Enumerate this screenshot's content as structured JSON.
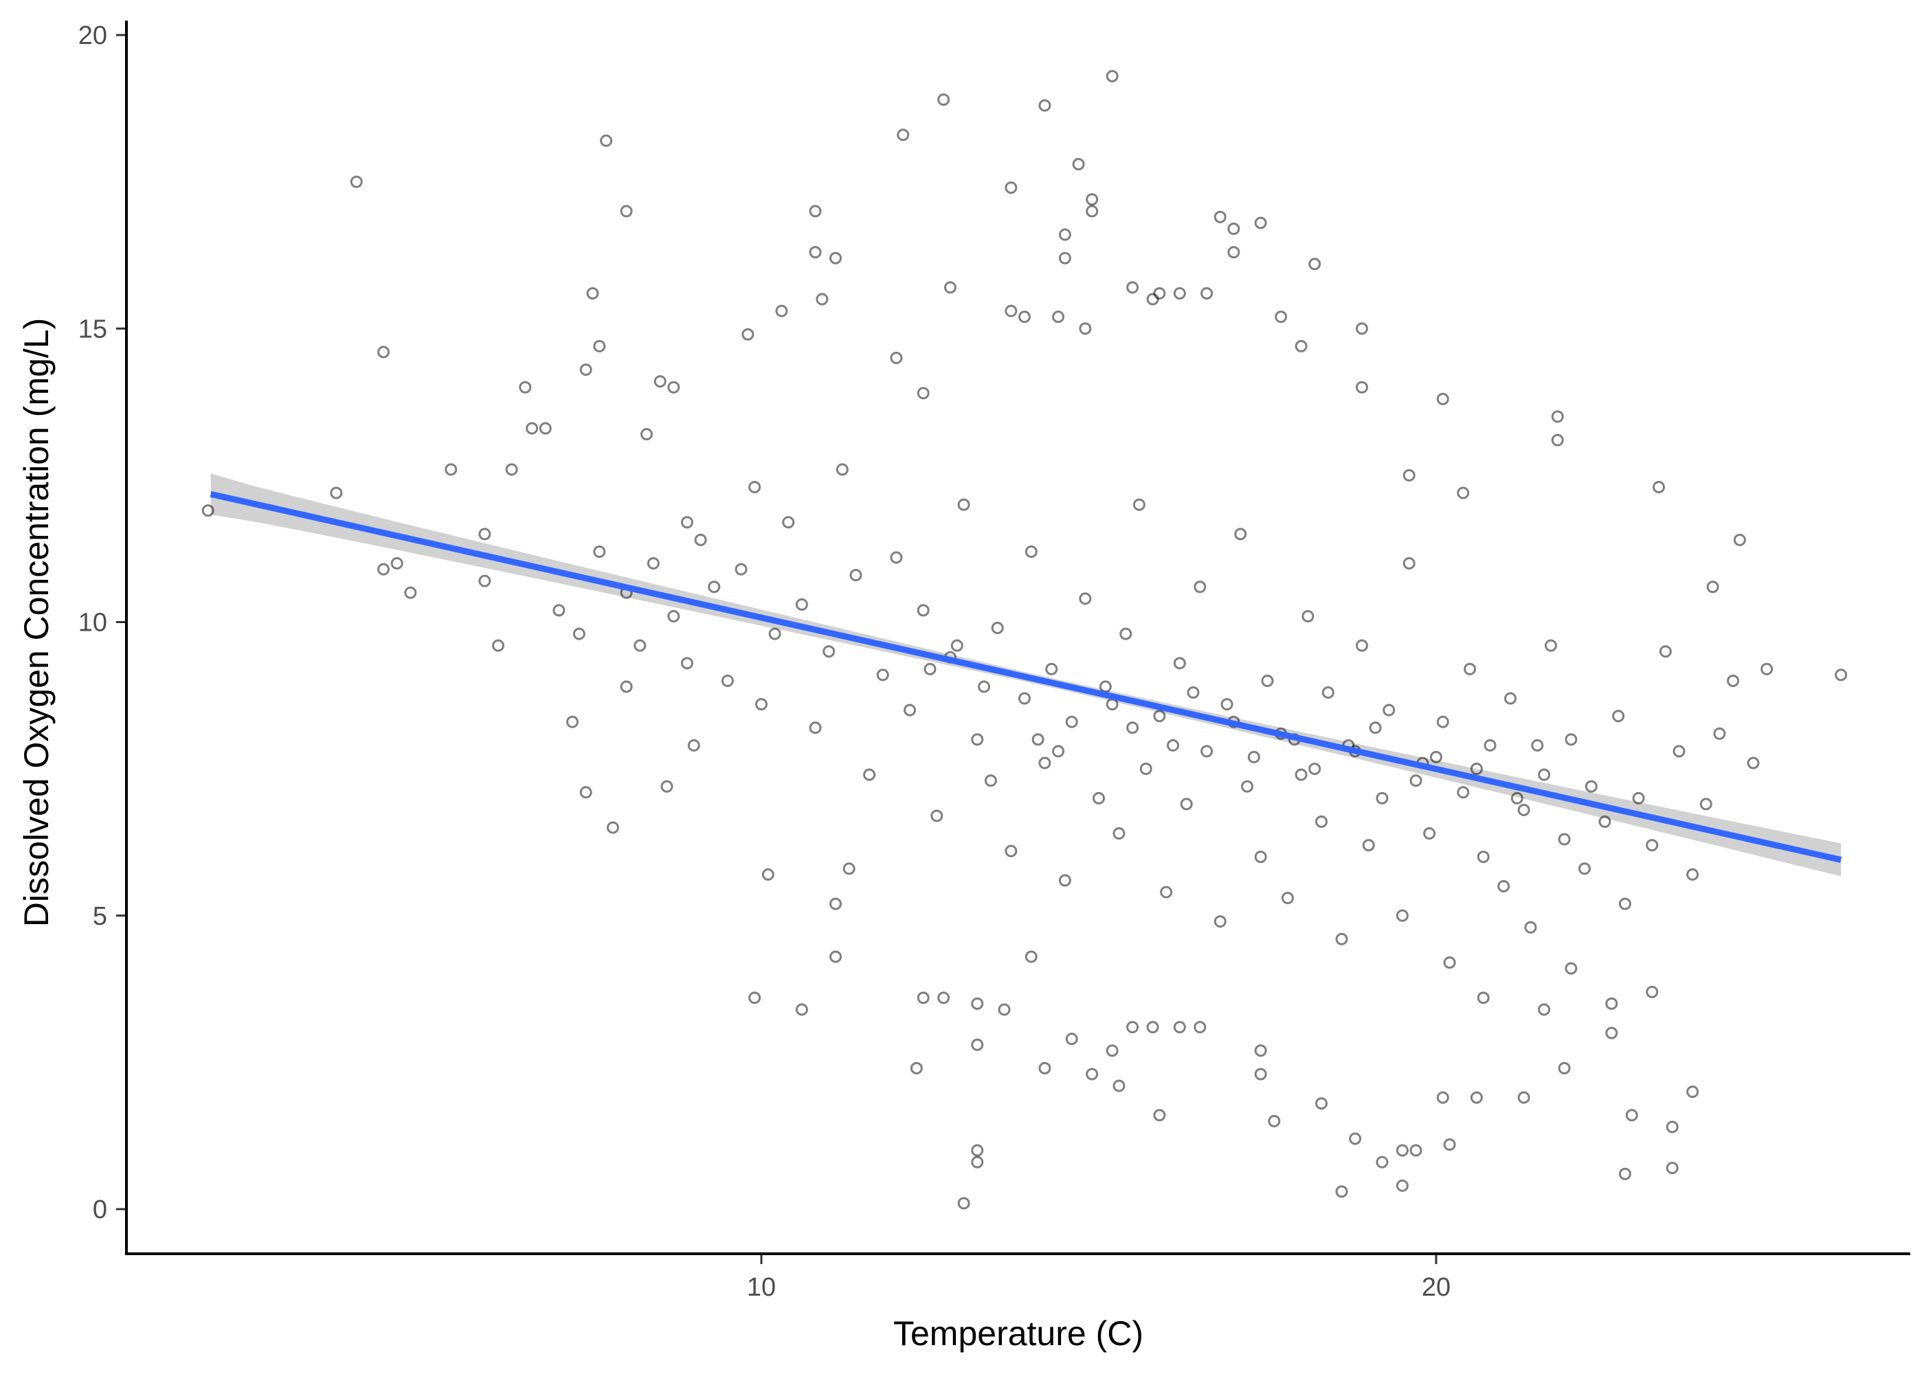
{
  "chart_data": {
    "type": "scatter",
    "title": "",
    "xlabel": "Temperature (C)",
    "ylabel": "Dissolved Oxygen Concentration (mg/L)",
    "xlim": [
      0.9,
      27.4
    ],
    "ylim": [
      -0.8,
      20.2
    ],
    "xticks": [
      10,
      20
    ],
    "xtick_labels": [
      "10",
      "20"
    ],
    "yticks": [
      0,
      5,
      10,
      15,
      20
    ],
    "ytick_labels": [
      "0",
      "5",
      "10",
      "15",
      "20"
    ],
    "grid": false,
    "legend": "none",
    "point_color": "#000000",
    "point_opacity": 0.5,
    "fit": {
      "method": "linear",
      "color": "#3366FF",
      "band_color": "#999999",
      "x": [
        1.84,
        26.0
      ],
      "y": [
        12.18,
        5.95
      ],
      "ci_halfwidth": [
        0.35,
        0.08,
        0.28
      ]
    },
    "points": [
      [
        1.8,
        11.9
      ],
      [
        4.0,
        17.5
      ],
      [
        3.7,
        12.2
      ],
      [
        4.4,
        14.6
      ],
      [
        4.4,
        10.9
      ],
      [
        4.6,
        11.0
      ],
      [
        4.8,
        10.5
      ],
      [
        5.4,
        12.6
      ],
      [
        5.9,
        11.5
      ],
      [
        5.9,
        10.7
      ],
      [
        6.1,
        9.6
      ],
      [
        6.3,
        12.6
      ],
      [
        6.6,
        13.3
      ],
      [
        6.8,
        13.3
      ],
      [
        6.5,
        14.0
      ],
      [
        7.7,
        18.2
      ],
      [
        8.0,
        17.0
      ],
      [
        7.5,
        15.6
      ],
      [
        7.6,
        14.7
      ],
      [
        7.4,
        14.3
      ],
      [
        7.8,
        6.5
      ],
      [
        7.4,
        7.1
      ],
      [
        7.2,
        8.3
      ],
      [
        8.6,
        7.2
      ],
      [
        8.0,
        8.9
      ],
      [
        8.5,
        14.1
      ],
      [
        8.7,
        14.0
      ],
      [
        8.3,
        13.2
      ],
      [
        8.9,
        11.7
      ],
      [
        9.0,
        7.9
      ],
      [
        9.8,
        14.9
      ],
      [
        9.9,
        3.6
      ],
      [
        10.1,
        5.7
      ],
      [
        10.3,
        15.3
      ],
      [
        10.6,
        3.4
      ],
      [
        10.8,
        17.0
      ],
      [
        10.8,
        16.3
      ],
      [
        11.1,
        16.2
      ],
      [
        10.9,
        15.5
      ],
      [
        11.1,
        4.3
      ],
      [
        11.1,
        5.2
      ],
      [
        11.3,
        5.8
      ],
      [
        12.1,
        18.3
      ],
      [
        12.7,
        18.9
      ],
      [
        12.8,
        15.7
      ],
      [
        12.0,
        14.5
      ],
      [
        12.4,
        13.9
      ],
      [
        12.3,
        2.4
      ],
      [
        12.4,
        3.6
      ],
      [
        12.7,
        3.6
      ],
      [
        13.0,
        0.1
      ],
      [
        13.2,
        1.0
      ],
      [
        13.2,
        0.8
      ],
      [
        13.2,
        2.8
      ],
      [
        13.2,
        3.5
      ],
      [
        13.6,
        3.4
      ],
      [
        14.0,
        4.3
      ],
      [
        14.2,
        2.4
      ],
      [
        13.7,
        17.4
      ],
      [
        14.2,
        18.8
      ],
      [
        14.7,
        17.8
      ],
      [
        14.9,
        17.2
      ],
      [
        14.9,
        17.0
      ],
      [
        15.2,
        19.3
      ],
      [
        14.5,
        16.6
      ],
      [
        14.5,
        16.2
      ],
      [
        13.7,
        15.3
      ],
      [
        13.9,
        15.2
      ],
      [
        14.4,
        15.2
      ],
      [
        14.8,
        15.0
      ],
      [
        15.2,
        2.7
      ],
      [
        14.9,
        2.3
      ],
      [
        14.6,
        2.9
      ],
      [
        15.3,
        2.1
      ],
      [
        15.9,
        1.6
      ],
      [
        15.8,
        3.1
      ],
      [
        15.5,
        3.1
      ],
      [
        16.2,
        3.1
      ],
      [
        16.5,
        3.1
      ],
      [
        15.9,
        15.6
      ],
      [
        16.2,
        15.6
      ],
      [
        15.5,
        15.7
      ],
      [
        15.8,
        15.5
      ],
      [
        16.6,
        15.6
      ],
      [
        16.8,
        16.9
      ],
      [
        17.0,
        16.7
      ],
      [
        17.0,
        16.3
      ],
      [
        17.4,
        16.8
      ],
      [
        18.2,
        16.1
      ],
      [
        17.7,
        15.2
      ],
      [
        18.0,
        14.7
      ],
      [
        18.9,
        15.0
      ],
      [
        18.9,
        14.0
      ],
      [
        17.6,
        1.5
      ],
      [
        18.3,
        1.8
      ],
      [
        17.4,
        2.7
      ],
      [
        17.4,
        2.3
      ],
      [
        18.8,
        1.2
      ],
      [
        18.6,
        0.3
      ],
      [
        19.2,
        0.8
      ],
      [
        19.5,
        1.0
      ],
      [
        19.5,
        0.4
      ],
      [
        19.7,
        1.0
      ],
      [
        20.2,
        1.1
      ],
      [
        20.1,
        1.9
      ],
      [
        20.6,
        1.9
      ],
      [
        20.4,
        12.2
      ],
      [
        20.1,
        13.8
      ],
      [
        19.6,
        12.5
      ],
      [
        21.8,
        13.5
      ],
      [
        21.8,
        13.1
      ],
      [
        23.3,
        12.3
      ],
      [
        24.1,
        10.6
      ],
      [
        24.5,
        11.4
      ],
      [
        24.9,
        9.2
      ],
      [
        24.4,
        9.0
      ],
      [
        24.7,
        7.6
      ],
      [
        26.0,
        9.1
      ],
      [
        23.8,
        2.0
      ],
      [
        23.5,
        1.4
      ],
      [
        23.5,
        0.7
      ],
      [
        22.8,
        0.6
      ],
      [
        22.9,
        1.6
      ],
      [
        22.6,
        3.0
      ],
      [
        23.2,
        3.7
      ],
      [
        22.6,
        3.5
      ],
      [
        22.0,
        4.1
      ],
      [
        21.6,
        3.4
      ],
      [
        21.3,
        1.9
      ],
      [
        21.9,
        2.4
      ],
      [
        20.7,
        3.6
      ],
      [
        7.0,
        10.2
      ],
      [
        7.3,
        9.8
      ],
      [
        7.6,
        11.2
      ],
      [
        8.0,
        10.5
      ],
      [
        8.2,
        9.6
      ],
      [
        8.4,
        11.0
      ],
      [
        8.7,
        10.1
      ],
      [
        8.9,
        9.3
      ],
      [
        9.1,
        11.4
      ],
      [
        9.3,
        10.6
      ],
      [
        9.5,
        9.0
      ],
      [
        9.7,
        10.9
      ],
      [
        9.9,
        12.3
      ],
      [
        10.0,
        8.6
      ],
      [
        10.2,
        9.8
      ],
      [
        10.4,
        11.7
      ],
      [
        10.6,
        10.3
      ],
      [
        10.8,
        8.2
      ],
      [
        11.0,
        9.5
      ],
      [
        11.2,
        12.6
      ],
      [
        11.4,
        10.8
      ],
      [
        11.6,
        7.4
      ],
      [
        11.8,
        9.1
      ],
      [
        12.0,
        11.1
      ],
      [
        12.2,
        8.5
      ],
      [
        12.4,
        10.2
      ],
      [
        12.6,
        6.7
      ],
      [
        12.8,
        9.4
      ],
      [
        13.0,
        12.0
      ],
      [
        13.2,
        8.0
      ],
      [
        13.4,
        7.3
      ],
      [
        13.5,
        9.9
      ],
      [
        13.7,
        6.1
      ],
      [
        13.9,
        8.7
      ],
      [
        14.0,
        11.2
      ],
      [
        14.2,
        7.6
      ],
      [
        14.3,
        9.2
      ],
      [
        14.5,
        5.6
      ],
      [
        14.6,
        8.3
      ],
      [
        14.8,
        10.4
      ],
      [
        15.0,
        7.0
      ],
      [
        15.1,
        8.9
      ],
      [
        15.3,
        6.4
      ],
      [
        15.4,
        9.8
      ],
      [
        15.6,
        12.0
      ],
      [
        15.7,
        7.5
      ],
      [
        15.9,
        8.4
      ],
      [
        16.0,
        5.4
      ],
      [
        16.2,
        9.3
      ],
      [
        16.3,
        6.9
      ],
      [
        16.5,
        10.6
      ],
      [
        16.6,
        7.8
      ],
      [
        16.8,
        4.9
      ],
      [
        16.9,
        8.6
      ],
      [
        17.1,
        11.5
      ],
      [
        17.2,
        7.2
      ],
      [
        17.4,
        6.0
      ],
      [
        17.5,
        9.0
      ],
      [
        17.7,
        8.1
      ],
      [
        17.8,
        5.3
      ],
      [
        18.0,
        7.4
      ],
      [
        18.1,
        10.1
      ],
      [
        18.3,
        6.6
      ],
      [
        18.4,
        8.8
      ],
      [
        18.6,
        4.6
      ],
      [
        18.7,
        7.9
      ],
      [
        18.9,
        9.6
      ],
      [
        19.0,
        6.2
      ],
      [
        19.2,
        7.0
      ],
      [
        19.3,
        8.5
      ],
      [
        19.5,
        5.0
      ],
      [
        19.6,
        11.0
      ],
      [
        19.8,
        7.6
      ],
      [
        19.9,
        6.4
      ],
      [
        20.1,
        8.3
      ],
      [
        20.2,
        4.2
      ],
      [
        20.4,
        7.1
      ],
      [
        20.5,
        9.2
      ],
      [
        20.7,
        6.0
      ],
      [
        20.8,
        7.9
      ],
      [
        21.0,
        5.5
      ],
      [
        21.1,
        8.7
      ],
      [
        21.3,
        6.8
      ],
      [
        21.4,
        4.8
      ],
      [
        21.6,
        7.4
      ],
      [
        21.7,
        9.6
      ],
      [
        21.9,
        6.3
      ],
      [
        22.0,
        8.0
      ],
      [
        22.2,
        5.8
      ],
      [
        22.3,
        7.2
      ],
      [
        22.5,
        6.6
      ],
      [
        22.7,
        8.4
      ],
      [
        22.8,
        5.2
      ],
      [
        23.0,
        7.0
      ],
      [
        23.2,
        6.2
      ],
      [
        23.4,
        9.5
      ],
      [
        23.6,
        7.8
      ],
      [
        23.8,
        5.7
      ],
      [
        24.0,
        6.9
      ],
      [
        24.2,
        8.1
      ],
      [
        14.1,
        8.0
      ],
      [
        14.4,
        7.8
      ],
      [
        15.2,
        8.6
      ],
      [
        15.5,
        8.2
      ],
      [
        16.1,
        7.9
      ],
      [
        16.4,
        8.8
      ],
      [
        17.0,
        8.3
      ],
      [
        17.3,
        7.7
      ],
      [
        17.9,
        8.0
      ],
      [
        18.2,
        7.5
      ],
      [
        18.8,
        7.8
      ],
      [
        19.1,
        8.2
      ],
      [
        19.7,
        7.3
      ],
      [
        20.0,
        7.7
      ],
      [
        20.6,
        7.5
      ],
      [
        21.2,
        7.0
      ],
      [
        21.5,
        7.9
      ],
      [
        13.3,
        8.9
      ],
      [
        12.9,
        9.6
      ],
      [
        12.5,
        9.2
      ]
    ]
  }
}
